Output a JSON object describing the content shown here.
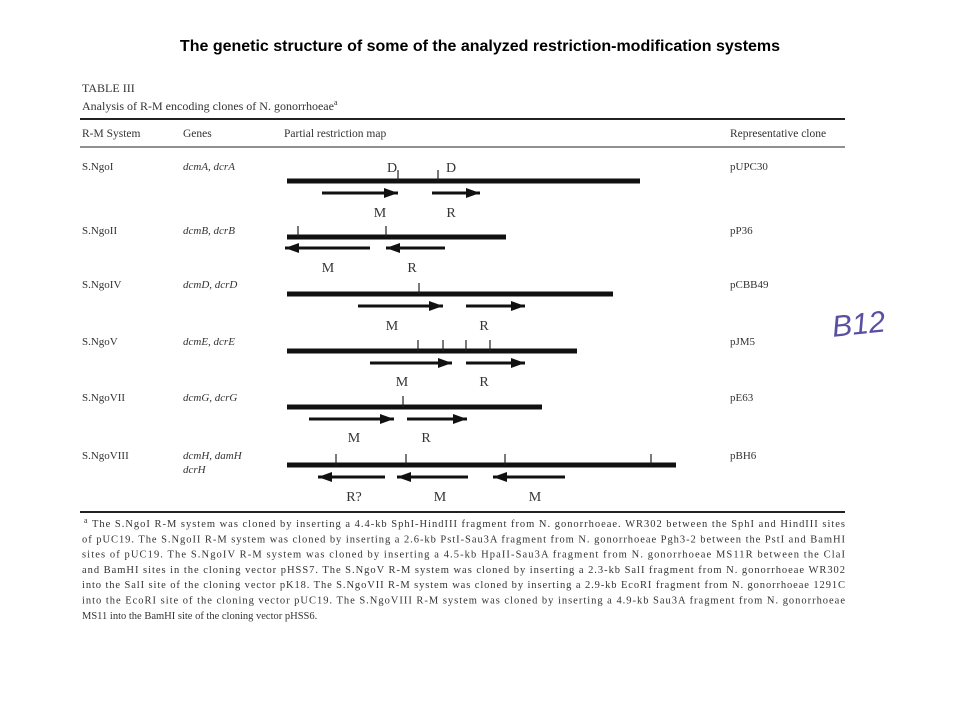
{
  "title": "The genetic structure of some of the analyzed restriction-modification systems",
  "table": {
    "caption": "TABLE III",
    "subtitle": "Analysis of R-M encoding clones of N. gonorrhoeae",
    "subtitle_note": "a",
    "headers": [
      "R-M System",
      "Genes",
      "Partial restriction map",
      "Representative clone"
    ],
    "rows": [
      {
        "system": "S.NgoI",
        "genes": "dcmA, dcrA",
        "map_labels": [
          "D",
          "D",
          "M",
          "R"
        ],
        "clone": "pUPC30"
      },
      {
        "system": "S.NgoII",
        "genes": "dcmB, dcrB",
        "map_labels": [
          "M",
          "R"
        ],
        "clone": "pP36"
      },
      {
        "system": "S.NgoIV",
        "genes": "dcmD, dcrD",
        "map_labels": [
          "M",
          "R"
        ],
        "clone": "pCBB49"
      },
      {
        "system": "S.NgoV",
        "genes": "dcmE, dcrE",
        "map_labels": [
          "M",
          "R"
        ],
        "clone": "pJM5"
      },
      {
        "system": "S.NgoVII",
        "genes": "dcmG, dcrG",
        "map_labels": [
          "M",
          "R"
        ],
        "clone": "pE63"
      },
      {
        "system": "S.NgoVIII",
        "genes": "dcmH, damH",
        "genes_line2": "dcrH",
        "map_labels": [
          "R?",
          "M",
          "M"
        ],
        "clone": "pBH6"
      }
    ],
    "footnote_marker": "a",
    "footnote_lines": [
      "The S.NgoI R-M system was cloned by inserting a 4.4-kb SphI-HindIII fragment from N. gonorrhoeae. WR302 between the SphI and HindIII sites",
      "of pUC19. The S.NgoII R-M system was cloned by inserting a 2.6-kb PstI-Sau3A fragment from N. gonorrhoeae Pgh3-2 between the PstI and BamHI",
      "sites of pUC19. The S.NgoIV R-M system was cloned by inserting a 4.5-kb HpaII-Sau3A fragment from N. gonorrhoeae MS11R between the ClaI",
      "and BamHI sites in the cloning vector pHSS7. The S.NgoV R-M system was cloned by inserting a 2.3-kb SalI fragment from N. gonorrhoeae WR302",
      "into the SalI site of the cloning vector pK18. The S.NgoVII R-M system was cloned by inserting a 2.9-kb EcoRI fragment from N. gonorrhoeae 1291C",
      "into the EcoRI site of the cloning vector pUC19. The S.NgoVIII R-M system was cloned by inserting a 4.9-kb Sau3A fragment from N. gonorrhoeae",
      "MS11 into the BamHI site of the cloning vector pHSS6."
    ]
  },
  "annotation": "B12"
}
